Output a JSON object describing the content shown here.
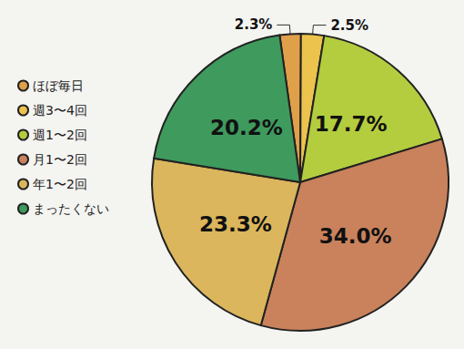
{
  "chart_data": {
    "type": "pie",
    "categories": [
      "ほぼ毎日",
      "週3〜4回",
      "週1〜2回",
      "月1〜2回",
      "年1〜2回",
      "まったくない"
    ],
    "values": [
      2.3,
      2.5,
      17.7,
      34.0,
      23.3,
      20.2
    ],
    "value_labels": [
      "2.3%",
      "2.5%",
      "17.7%",
      "34.0%",
      "23.3%",
      "20.2%"
    ],
    "colors": [
      "#e0a04a",
      "#ecc34c",
      "#b4cd3e",
      "#c9825c",
      "#dbb65c",
      "#3f9a5e"
    ],
    "legend": "left",
    "data_labels": true
  }
}
